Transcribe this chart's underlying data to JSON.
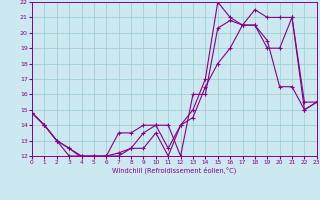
{
  "xlabel": "Windchill (Refroidissement éolien,°C)",
  "bg_color": "#cce8f0",
  "line_color": "#880088",
  "grid_color": "#99cccc",
  "series1_x": [
    0,
    1,
    2,
    3,
    4,
    5,
    6,
    7,
    8,
    9,
    10,
    11,
    12,
    13,
    14,
    15,
    16,
    17,
    18,
    19,
    20,
    21,
    22,
    23
  ],
  "series1_y": [
    14.8,
    14.0,
    13.0,
    12.5,
    12.0,
    12.0,
    12.0,
    12.0,
    12.5,
    13.5,
    14.0,
    12.5,
    14.0,
    15.0,
    17.0,
    22.0,
    21.0,
    20.5,
    20.5,
    19.5,
    16.5,
    16.5,
    15.0,
    15.5
  ],
  "series2_x": [
    0,
    1,
    2,
    3,
    4,
    5,
    6,
    7,
    8,
    9,
    10,
    11,
    12,
    13,
    14,
    15,
    16,
    17,
    18,
    19,
    20,
    21,
    22,
    23
  ],
  "series2_y": [
    14.8,
    14.0,
    13.0,
    12.0,
    12.0,
    12.0,
    12.0,
    12.2,
    12.5,
    12.5,
    13.5,
    12.0,
    14.0,
    14.5,
    16.5,
    18.0,
    19.0,
    20.5,
    21.5,
    21.0,
    21.0,
    21.0,
    15.5,
    15.5
  ],
  "series3_x": [
    0,
    1,
    2,
    3,
    4,
    5,
    6,
    7,
    8,
    9,
    10,
    11,
    12,
    13,
    14,
    15,
    16,
    17,
    18,
    19,
    20,
    21,
    22,
    23
  ],
  "series3_y": [
    14.8,
    14.0,
    13.0,
    12.5,
    11.9,
    11.9,
    12.0,
    13.5,
    13.5,
    14.0,
    14.0,
    14.0,
    12.0,
    16.0,
    16.0,
    20.3,
    20.8,
    20.5,
    20.5,
    19.0,
    19.0,
    21.0,
    15.0,
    15.5
  ],
  "ylim": [
    12,
    22
  ],
  "xlim": [
    0,
    23
  ],
  "yticks": [
    12,
    13,
    14,
    15,
    16,
    17,
    18,
    19,
    20,
    21,
    22
  ],
  "xticks": [
    0,
    1,
    2,
    3,
    4,
    5,
    6,
    7,
    8,
    9,
    10,
    11,
    12,
    13,
    14,
    15,
    16,
    17,
    18,
    19,
    20,
    21,
    22,
    23
  ]
}
